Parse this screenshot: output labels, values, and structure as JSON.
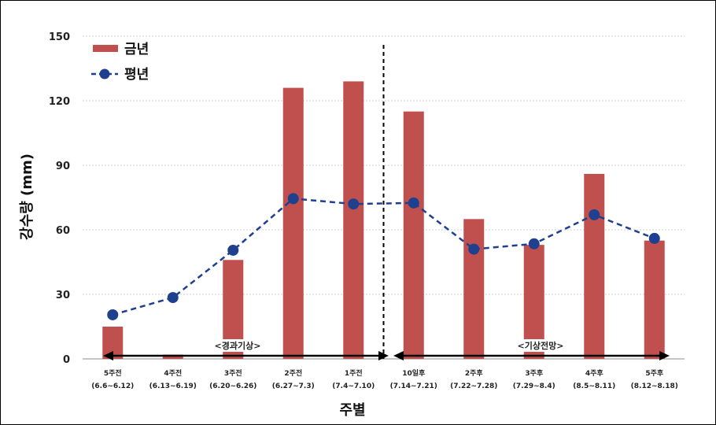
{
  "chart_data": {
    "type": "bar",
    "categories": [
      "5주전",
      "4주전",
      "3주전",
      "2주전",
      "1주전",
      "10일후",
      "2주후",
      "3주후",
      "4주후",
      "5주후"
    ],
    "category_ranges": [
      "(6.6~6.12)",
      "(6.13~6.19)",
      "(6.20~6.26)",
      "(6.27~7.3)",
      "(7.4~7.10)",
      "(7.14~7.21)",
      "(7.22~7.28)",
      "(7.29~8.4)",
      "(8.5~8.11)",
      "(8.12~8.18)"
    ],
    "series": [
      {
        "name": "금년",
        "kind": "bar",
        "color": "#c0504d",
        "values": [
          15,
          2,
          46,
          126,
          129,
          115,
          65,
          53,
          86,
          55
        ]
      },
      {
        "name": "평년",
        "kind": "line",
        "color": "#1f3f8f",
        "style": "dashed",
        "values": [
          20.5,
          28.5,
          50.5,
          74.5,
          72,
          72.5,
          51,
          53.5,
          67,
          56
        ]
      }
    ],
    "title": "",
    "xlabel": "주별",
    "ylabel": "강수량 (mm)",
    "ylim": [
      0,
      150
    ],
    "yticks": [
      0,
      30,
      60,
      90,
      120,
      150
    ],
    "grid": true,
    "legend": "top-left",
    "periods": [
      "<경과기상>",
      "<기상전망>"
    ]
  }
}
